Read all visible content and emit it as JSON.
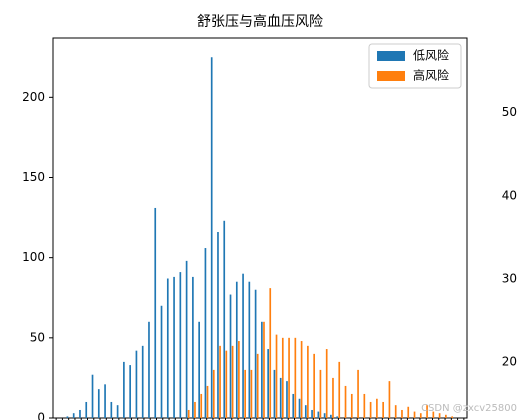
{
  "chart_data": [
    {
      "type": "bar",
      "title": "舒张压与高血压风险",
      "categories": [
        null,
        null,
        null,
        null,
        null,
        null,
        null,
        null,
        null,
        null,
        null,
        null,
        null,
        null,
        null,
        null,
        null,
        null,
        null,
        null,
        null,
        null,
        null,
        null,
        null,
        null,
        null,
        null,
        null,
        null,
        null,
        null,
        null,
        null,
        null,
        null,
        null,
        null,
        null,
        null,
        null,
        null,
        null,
        null,
        null,
        null,
        null,
        null,
        null,
        null,
        null,
        null,
        null,
        null,
        null,
        null,
        null,
        null,
        null,
        null,
        null,
        null,
        null,
        null,
        null,
        null
      ],
      "series": [
        {
          "name": "低风险",
          "color": "#1f77b4",
          "values": [
            0,
            0,
            1,
            3,
            5,
            10,
            27,
            18,
            21,
            10,
            8,
            35,
            33,
            42,
            45,
            60,
            131,
            70,
            87,
            88,
            91,
            98,
            88,
            60,
            106,
            225,
            116,
            123,
            77,
            85,
            90,
            85,
            80,
            60,
            43,
            30,
            25,
            23,
            15,
            12,
            8,
            5,
            4,
            3,
            2,
            1,
            0,
            0,
            0,
            0,
            0,
            0,
            0,
            0,
            0,
            0,
            0,
            0,
            0,
            0,
            0,
            0,
            0,
            0,
            0,
            0
          ]
        },
        {
          "name": "高风险",
          "color": "#ff7f0e",
          "values": [
            0,
            0,
            0,
            0,
            0,
            0,
            0,
            0,
            0,
            0,
            0,
            0,
            0,
            0,
            0,
            0,
            0,
            0,
            0,
            0,
            0,
            5,
            10,
            15,
            20,
            30,
            45,
            42,
            45,
            48,
            30,
            30,
            40,
            60,
            81,
            52,
            50,
            50,
            50,
            48,
            45,
            40,
            30,
            43,
            25,
            35,
            20,
            15,
            30,
            15,
            10,
            12,
            10,
            23,
            8,
            5,
            7,
            4,
            3,
            8,
            4,
            3,
            2,
            1,
            0,
            0
          ]
        }
      ],
      "ylim": [
        0,
        237
      ],
      "yticks": [
        0,
        50,
        100,
        150,
        200
      ],
      "legend": "upper right",
      "watermark": "CSDN @zxcv25800"
    },
    {
      "type": "bar",
      "ylim": [
        13,
        59
      ],
      "yticks": [
        20,
        30,
        40,
        50
      ]
    }
  ]
}
